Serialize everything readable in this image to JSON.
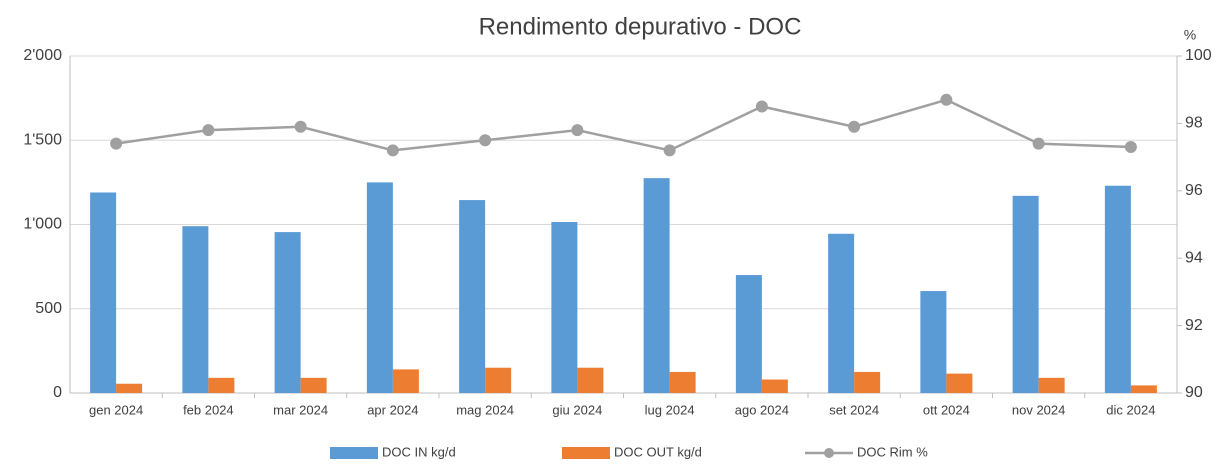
{
  "chart_data": {
    "type": "bar",
    "title": "Rendimento depurativo - DOC",
    "y2_label": "%",
    "categories": [
      "gen 2024",
      "feb 2024",
      "mar 2024",
      "apr 2024",
      "mag 2024",
      "giu 2024",
      "lug 2024",
      "ago 2024",
      "set 2024",
      "ott 2024",
      "nov 2024",
      "dic 2024"
    ],
    "series": [
      {
        "name": "DOC IN kg/d",
        "type": "bar",
        "color": "#5b9bd5",
        "values": [
          1190,
          990,
          955,
          1250,
          1145,
          1015,
          1275,
          700,
          945,
          605,
          1170,
          1230
        ]
      },
      {
        "name": "DOC OUT kg/d",
        "type": "bar",
        "color": "#ed7d31",
        "values": [
          55,
          90,
          90,
          140,
          150,
          150,
          125,
          80,
          125,
          115,
          90,
          45
        ]
      },
      {
        "name": "DOC Rim %",
        "type": "line",
        "axis": "y2",
        "color": "#a0a0a0",
        "values": [
          97.4,
          97.8,
          97.9,
          97.2,
          97.5,
          97.8,
          97.2,
          98.5,
          97.9,
          98.7,
          97.4,
          97.3
        ]
      }
    ],
    "ylim": [
      0,
      2000
    ],
    "yticks": [
      0,
      500,
      {
        "value": 1000,
        "label": "1'000"
      },
      {
        "value": 1500,
        "label": "1'500"
      },
      {
        "value": 2000,
        "label": "2'000"
      }
    ],
    "y2lim": [
      90,
      100
    ],
    "y2ticks": [
      90,
      92,
      94,
      96,
      98,
      100
    ],
    "grid": true,
    "legend": "bottom"
  }
}
